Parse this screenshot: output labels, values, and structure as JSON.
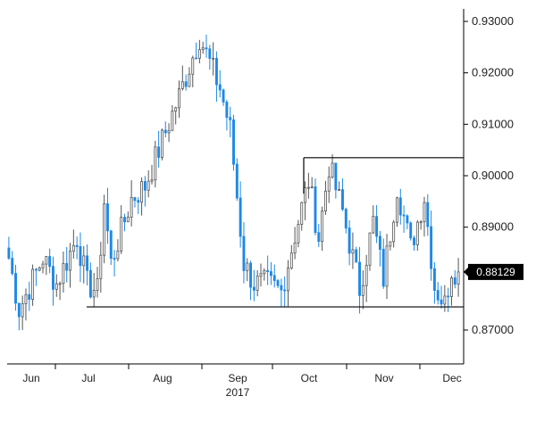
{
  "chart_data": {
    "type": "candlestick",
    "title": "",
    "xlabel": "",
    "ylabel": "",
    "x_tick_labels": [
      "Jun",
      "Jul",
      "Aug",
      "Sep",
      "Oct",
      "Nov",
      "Dec"
    ],
    "year_label": "2017",
    "ylim": [
      0.8645,
      0.9315
    ],
    "y_ticks": [
      {
        "value": 0.93,
        "label": "0.93000"
      },
      {
        "value": 0.92,
        "label": "0.92000"
      },
      {
        "value": 0.91,
        "label": "0.91000"
      },
      {
        "value": 0.9,
        "label": "0.90000"
      },
      {
        "value": 0.89,
        "label": "0.89000"
      },
      {
        "value": 0.87,
        "label": "0.87000"
      }
    ],
    "grid": false,
    "last_price": {
      "value": 0.88129,
      "label": "0.88129"
    },
    "horizontal_lines": [
      {
        "name": "support",
        "value": 0.8745
      },
      {
        "name": "resistance",
        "value": 0.9035
      }
    ],
    "colors": {
      "up": "#555555",
      "down": "#1e88e5",
      "line": "#000000",
      "price_tag": "#000000"
    },
    "anchors": [
      {
        "i": 0,
        "v": 0.884
      },
      {
        "i": 3,
        "v": 0.874
      },
      {
        "i": 10,
        "v": 0.884
      },
      {
        "i": 14,
        "v": 0.879
      },
      {
        "i": 20,
        "v": 0.888
      },
      {
        "i": 23,
        "v": 0.879
      },
      {
        "i": 26,
        "v": 0.8775
      },
      {
        "i": 28,
        "v": 0.895
      },
      {
        "i": 30,
        "v": 0.883
      },
      {
        "i": 36,
        "v": 0.8955
      },
      {
        "i": 40,
        "v": 0.898
      },
      {
        "i": 44,
        "v": 0.905
      },
      {
        "i": 50,
        "v": 0.9155
      },
      {
        "i": 56,
        "v": 0.927
      },
      {
        "i": 62,
        "v": 0.917
      },
      {
        "i": 65,
        "v": 0.909
      },
      {
        "i": 69,
        "v": 0.883
      },
      {
        "i": 72,
        "v": 0.879
      },
      {
        "i": 76,
        "v": 0.879
      },
      {
        "i": 80,
        "v": 0.8775
      },
      {
        "i": 84,
        "v": 0.8885
      },
      {
        "i": 88,
        "v": 0.899
      },
      {
        "i": 91,
        "v": 0.888
      },
      {
        "i": 94,
        "v": 0.902
      },
      {
        "i": 98,
        "v": 0.893
      },
      {
        "i": 103,
        "v": 0.878
      },
      {
        "i": 107,
        "v": 0.891
      },
      {
        "i": 110,
        "v": 0.88
      },
      {
        "i": 114,
        "v": 0.898
      },
      {
        "i": 118,
        "v": 0.886
      },
      {
        "i": 122,
        "v": 0.896
      },
      {
        "i": 125,
        "v": 0.8785
      },
      {
        "i": 128,
        "v": 0.875
      },
      {
        "i": 130,
        "v": 0.882
      },
      {
        "i": 132,
        "v": 0.88129
      }
    ]
  }
}
